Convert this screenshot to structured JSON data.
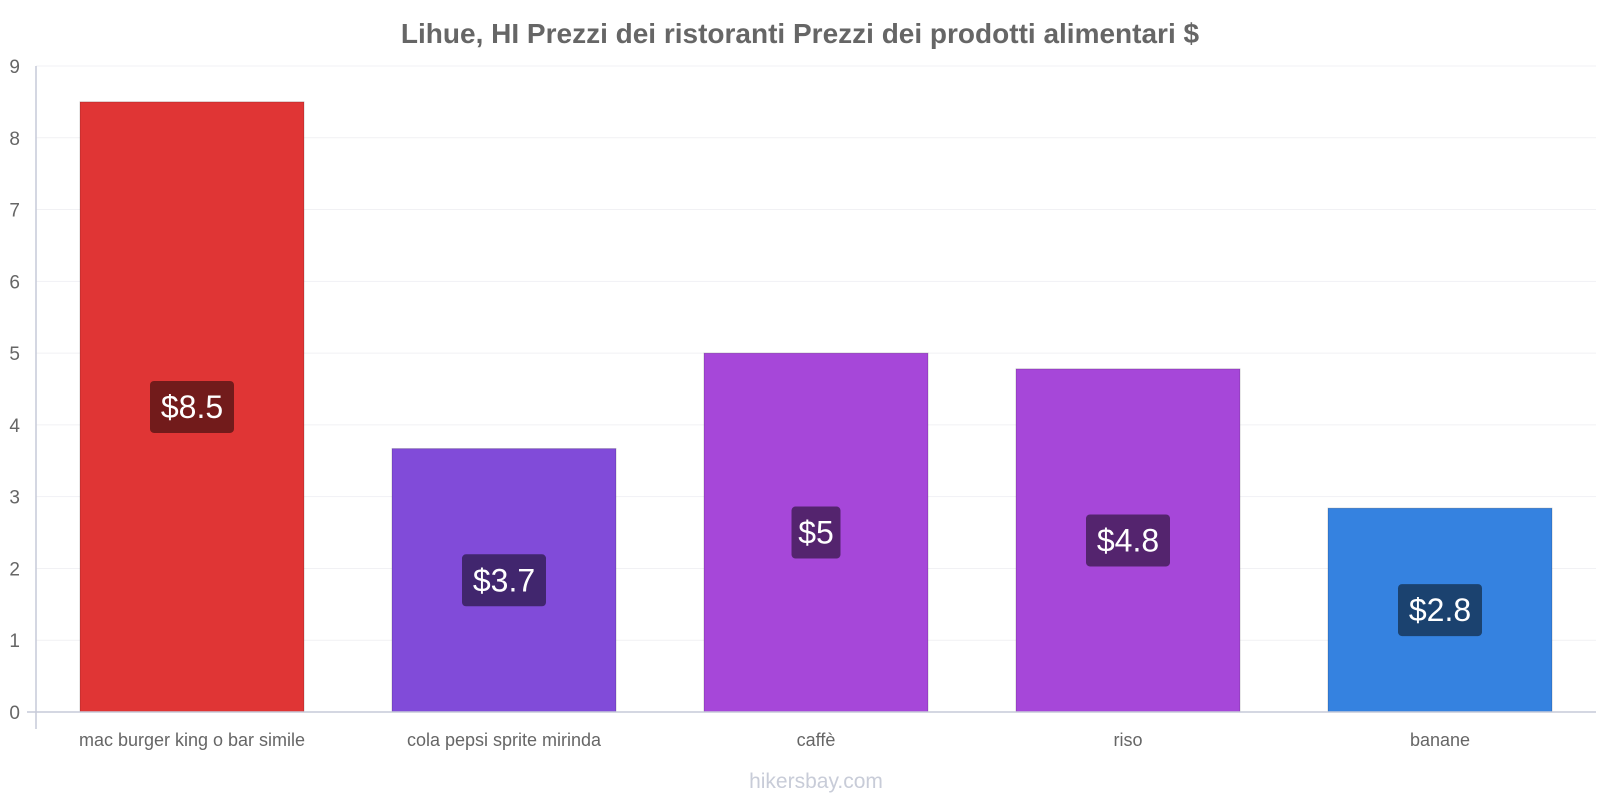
{
  "chart_data": {
    "type": "bar",
    "title": "Lihue, HI Prezzi dei ristoranti Prezzi dei prodotti alimentari $",
    "categories": [
      "mac burger king o bar simile",
      "cola pepsi sprite mirinda",
      "caffè",
      "riso",
      "banane"
    ],
    "values": [
      8.5,
      3.67,
      5.0,
      4.78,
      2.84
    ],
    "value_labels": [
      "$8.5",
      "$3.7",
      "$5",
      "$4.8",
      "$2.8"
    ],
    "bar_colors": [
      "#e03535",
      "#814bd9",
      "#a647d9",
      "#a647d9",
      "#3582e0"
    ],
    "label_box_colors": [
      "#721b1b",
      "#41266e",
      "#54246e",
      "#54246e",
      "#1b426f"
    ],
    "ylim": [
      0,
      9
    ],
    "yticks": [
      0,
      1,
      2,
      3,
      4,
      5,
      6,
      7,
      8,
      9
    ],
    "xlabel": "",
    "ylabel": "",
    "grid": true,
    "legend": "none"
  },
  "watermark": "hikersbay.com"
}
